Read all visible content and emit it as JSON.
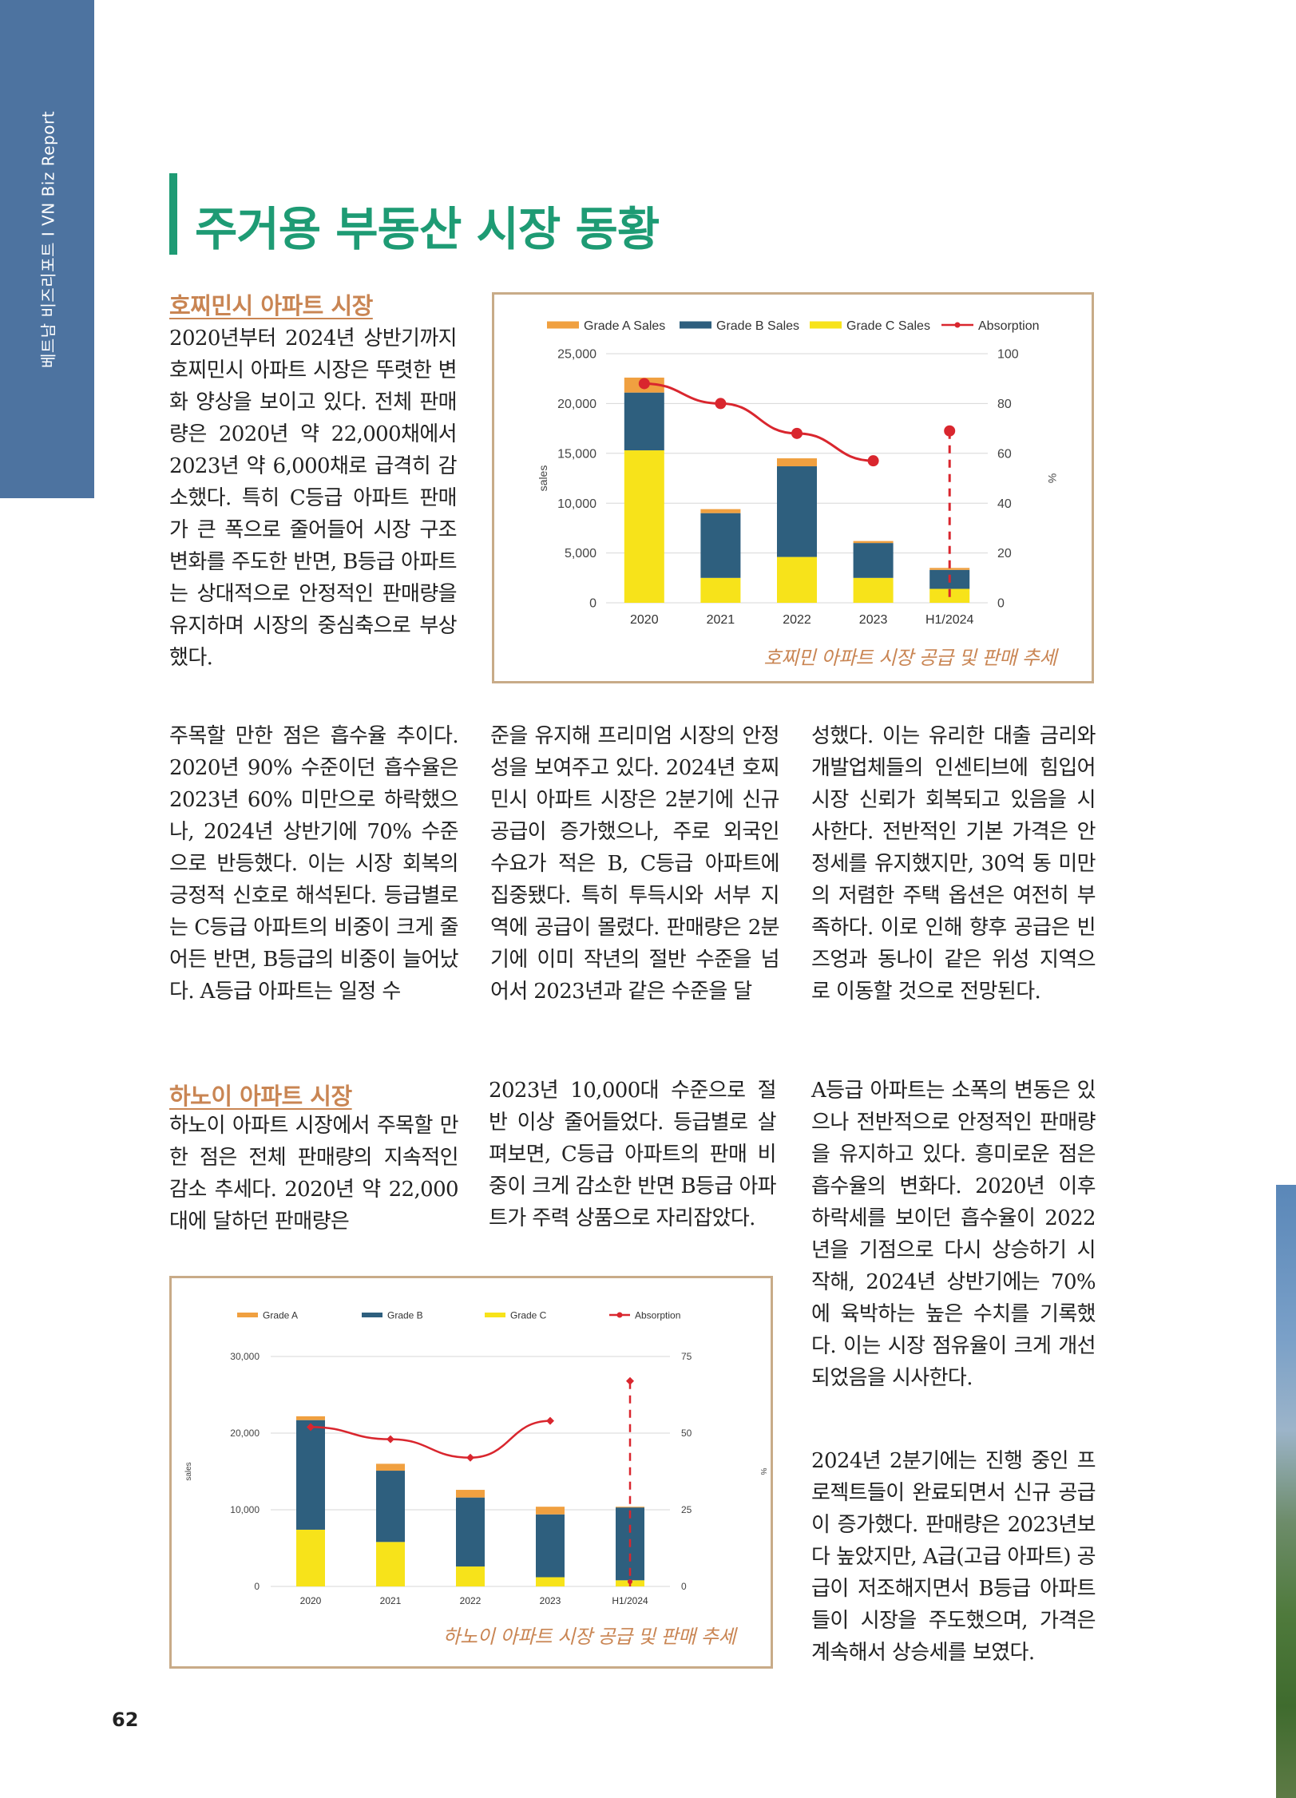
{
  "sidebar": {
    "text": "베트남 비즈리포트 I VN Biz Report"
  },
  "page_title": "주거용 부동산 시장 동황",
  "hcm": {
    "heading": "호찌민시 아파트 시장",
    "intro": "2020년부터 2024년 상반기까지 호찌민시 아파트 시장은 뚜렷한 변화 양상을 보이고 있다. 전체 판매량은 2020년 약 22,000채에서 2023년 약 6,000채로 급격히 감소했다. 특히 C등급 아파트 판매가 큰 폭으로 줄어들어 시장 구조 변화를 주도한 반면, B등급 아파트는 상대적으로 안정적인 판매량을 유지하며 시장의 중심축으로 부상했다.",
    "col1": "주목할 만한 점은 흡수율 추이다. 2020년 90% 수준이던 흡수율은 2023년 60% 미만으로 하락했으나, 2024년 상반기에 70% 수준으로 반등했다. 이는 시장 회복의 긍정적 신호로 해석된다. 등급별로는 C등급 아파트의 비중이 크게 줄어든 반면, B등급의 비중이 늘어났다. A등급 아파트는 일정 수",
    "col2": "준을 유지해 프리미엄 시장의 안정성을 보여주고 있다. 2024년 호찌민시 아파트 시장은 2분기에 신규 공급이 증가했으나, 주로 외국인 수요가 적은 B, C등급 아파트에 집중됐다. 특히 투득시와 서부 지역에 공급이 몰렸다. 판매량은 2분기에 이미 작년의 절반 수준을 넘어서 2023년과 같은 수준을 달",
    "col3": "성했다. 이는 유리한 대출 금리와 개발업체들의 인센티브에 힘입어 시장 신뢰가 회복되고 있음을 시사한다. 전반적인 기본 가격은 안정세를 유지했지만, 30억 동 미만의 저렴한 주택 옵션은 여전히 부족하다. 이로 인해 향후 공급은 빈즈엉과 동나이 같은 위성 지역으로 이동할 것으로 전망된다.",
    "caption": "호찌민 아파트 시장 공급 및 판매 추세"
  },
  "hanoi": {
    "heading": "하노이 아파트 시장",
    "col1": "하노이 아파트 시장에서 주목할 만한 점은 전체 판매량의 지속적인 감소 추세다. 2020년 약 22,000대에 달하던 판매량은",
    "col2": "2023년 10,000대 수준으로 절반 이상 줄어들었다. 등급별로 살펴보면, C등급 아파트의 판매 비중이 크게 감소한 반면 B등급 아파트가 주력 상품으로 자리잡았다.",
    "col3a": "A등급 아파트는 소폭의 변동은 있으나 전반적으로 안정적인 판매량을 유지하고 있다. 흥미로운 점은 흡수율의 변화다. 2020년 이후 하락세를 보이던 흡수율이 2022년을 기점으로 다시 상승하기 시작해, 2024년 상반기에는 70%에 육박하는 높은 수치를 기록했다. 이는 시장 점유율이 크게 개선되었음을 시사한다.",
    "col3b": "2024년 2분기에는 진행 중인 프로젝트들이 완료되면서 신규 공급이 증가했다. 판매량은 2023년보다 높았지만, A급(고급 아파트) 공급이 저조해지면서 B등급 아파트들이 시장을 주도했으며, 가격은 계속해서 상승세를 보였다.",
    "caption": "하노이 아파트 시장 공급 및 판매 추세"
  },
  "page_number": "62",
  "colors": {
    "grade_a": "#f0a040",
    "grade_b": "#2e5f7e",
    "grade_c": "#f7e31a",
    "absorption": "#d9262e",
    "accent_green": "#1e9b74",
    "heading_brown": "#c98553"
  },
  "chart_data": [
    {
      "type": "bar",
      "stacked": true,
      "categories": [
        "2020",
        "2021",
        "2022",
        "2023",
        "H1/2024"
      ],
      "legend": [
        "Grade A Sales",
        "Grade B Sales",
        "Grade C Sales",
        "Absorption"
      ],
      "series": [
        {
          "name": "Grade C Sales",
          "values": [
            15300,
            2500,
            4600,
            2500,
            1400
          ]
        },
        {
          "name": "Grade B Sales",
          "values": [
            5800,
            6500,
            9100,
            3500,
            1900
          ]
        },
        {
          "name": "Grade A Sales",
          "values": [
            1500,
            400,
            800,
            200,
            200
          ]
        }
      ],
      "line": {
        "name": "Absorption",
        "values": [
          88,
          80,
          68,
          57,
          69
        ],
        "dashed_last": true
      },
      "ylabel": "sales",
      "y2label": "%",
      "ylim": [
        0,
        25000
      ],
      "y2lim": [
        0,
        100
      ],
      "yticks": [
        "0",
        "5,000",
        "10,000",
        "15,000",
        "20,000",
        "25,000"
      ],
      "y2ticks": [
        "0",
        "20",
        "40",
        "60",
        "80",
        "100"
      ],
      "grid": true,
      "legend_position": "top"
    },
    {
      "type": "bar",
      "stacked": true,
      "categories": [
        "2020",
        "2021",
        "2022",
        "2023",
        "H1/2024"
      ],
      "legend": [
        "Grade A",
        "Grade B",
        "Grade C",
        "Absorption"
      ],
      "series": [
        {
          "name": "Grade C",
          "values": [
            7400,
            5800,
            2600,
            1200,
            800
          ]
        },
        {
          "name": "Grade B",
          "values": [
            14300,
            9300,
            9000,
            8200,
            9500
          ]
        },
        {
          "name": "Grade A",
          "values": [
            500,
            900,
            1000,
            1000,
            100
          ]
        }
      ],
      "line": {
        "name": "Absorption",
        "values": [
          52,
          48,
          42,
          54,
          67
        ],
        "dashed_last": true
      },
      "ylabel": "sales",
      "y2label": "%",
      "ylim": [
        0,
        30000
      ],
      "y2lim": [
        0,
        75
      ],
      "yticks": [
        "0",
        "10,000",
        "20,000",
        "30,000"
      ],
      "y2ticks": [
        "0",
        "25",
        "50",
        "75"
      ],
      "grid": true,
      "legend_position": "top"
    }
  ]
}
